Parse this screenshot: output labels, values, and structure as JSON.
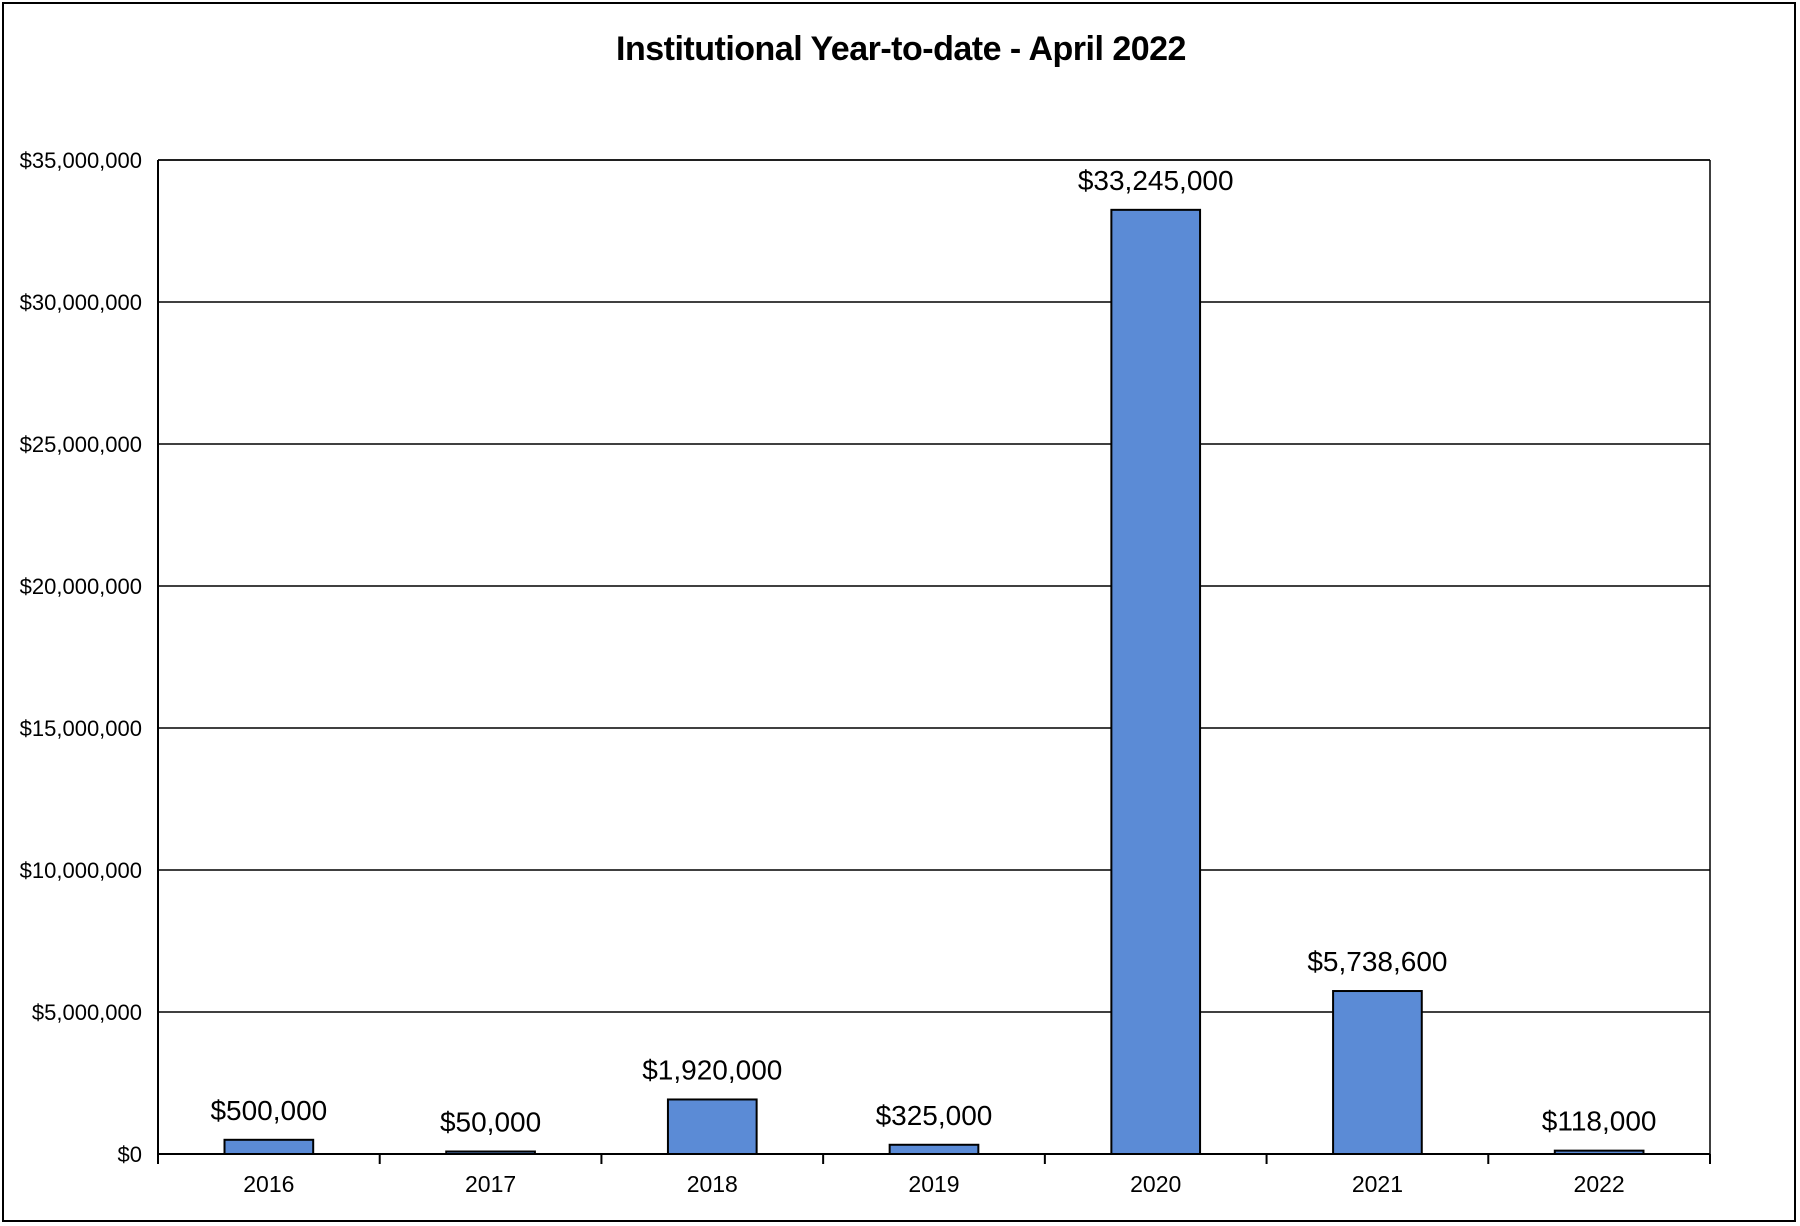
{
  "chart_data": {
    "type": "bar",
    "title": "Institutional Year-to-date - April 2022",
    "categories": [
      "2016",
      "2017",
      "2018",
      "2019",
      "2020",
      "2021",
      "2022"
    ],
    "values": [
      500000,
      50000,
      1920000,
      325000,
      33245000,
      5738600,
      118000
    ],
    "data_labels": [
      "$500,000",
      "$50,000",
      "$1,920,000",
      "$325,000",
      "$33,245,000",
      "$5,738,600",
      "$118,000"
    ],
    "y_tick_values": [
      0,
      5000000,
      10000000,
      15000000,
      20000000,
      25000000,
      30000000,
      35000000
    ],
    "y_tick_labels": [
      "$0",
      "$5,000,000",
      "$10,000,000",
      "$15,000,000",
      "$20,000,000",
      "$25,000,000",
      "$30,000,000",
      "$35,000,000"
    ],
    "ylim": [
      0,
      35000000
    ],
    "xlabel": "",
    "ylabel": "",
    "grid": true,
    "legend": "none",
    "colors": {
      "bar": "#5b8bd6",
      "bar_outline": "#000000",
      "grid": "#000000"
    }
  }
}
